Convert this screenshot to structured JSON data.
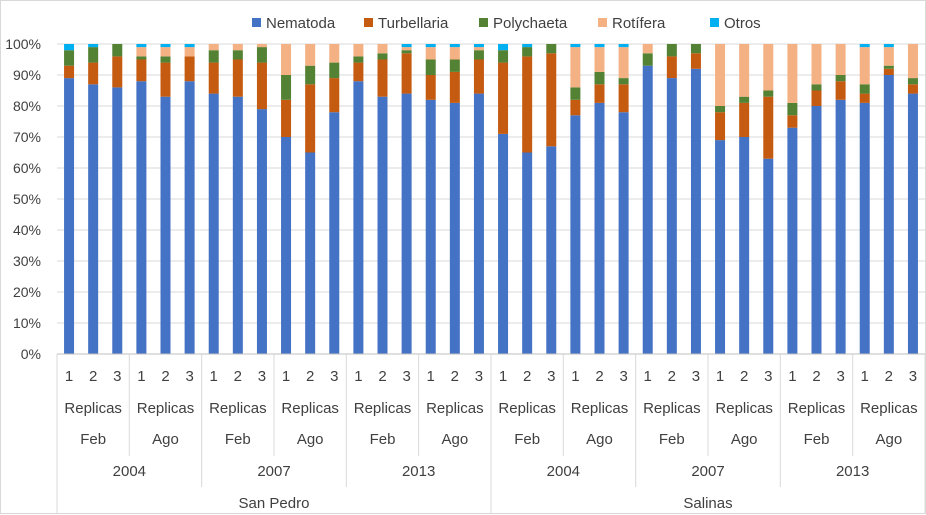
{
  "chart_data": {
    "type": "bar",
    "stacked": "percent",
    "title": "",
    "xlabel": "",
    "ylabel": "",
    "ylim": [
      0,
      100
    ],
    "yticks": [
      "0%",
      "10%",
      "20%",
      "30%",
      "40%",
      "50%",
      "60%",
      "70%",
      "80%",
      "90%",
      "100%"
    ],
    "grid": true,
    "legend_position": "top",
    "legend": [
      "Nematoda",
      "Turbellaria",
      "Polychaeta",
      "Rotífera",
      "Otros"
    ],
    "colors": {
      "Nematoda": "#4472c4",
      "Turbellaria": "#c55a11",
      "Polychaeta": "#548235",
      "Rotífera": "#f4b183",
      "Otros": "#00b0f0"
    },
    "category_levels": {
      "replicate_labels": [
        "1",
        "2",
        "3"
      ],
      "group_label": "Replicas",
      "months": [
        "Feb",
        "Ago"
      ],
      "years": [
        "2004",
        "2007",
        "2013"
      ],
      "sites": [
        "San Pedro",
        "Salinas"
      ]
    },
    "series": [
      {
        "name": "Nematoda",
        "values": [
          89,
          87,
          86,
          88,
          83,
          88,
          84,
          83,
          79,
          70,
          65,
          78,
          88,
          83,
          84,
          82,
          81,
          84,
          71,
          65,
          67,
          77,
          81,
          78,
          93,
          89,
          92,
          69,
          70,
          63,
          73,
          80,
          82,
          81,
          90,
          84
        ]
      },
      {
        "name": "Turbellaria",
        "values": [
          4,
          7,
          10,
          7,
          11,
          8,
          10,
          12,
          15,
          12,
          22,
          11,
          6,
          12,
          13,
          8,
          10,
          11,
          23,
          31,
          30,
          5,
          6,
          9,
          0,
          7,
          5,
          9,
          11,
          20,
          4,
          5,
          6,
          3,
          2,
          3
        ]
      },
      {
        "name": "Polychaeta",
        "values": [
          5,
          5,
          4,
          1,
          2,
          0,
          4,
          3,
          5,
          8,
          6,
          5,
          2,
          2,
          1,
          5,
          4,
          3,
          4,
          3,
          3,
          4,
          4,
          2,
          4,
          4,
          3,
          2,
          2,
          2,
          4,
          2,
          2,
          3,
          1,
          2
        ]
      },
      {
        "name": "Rotífera",
        "values": [
          0,
          0,
          0,
          3,
          3,
          3,
          2,
          2,
          1,
          10,
          7,
          6,
          4,
          3,
          1,
          4,
          4,
          1,
          0,
          0,
          0,
          13,
          8,
          10,
          3,
          0,
          0,
          20,
          17,
          15,
          19,
          13,
          10,
          12,
          6,
          11
        ]
      },
      {
        "name": "Otros",
        "values": [
          2,
          1,
          0,
          1,
          1,
          1,
          0,
          0,
          0,
          0,
          0,
          0,
          0,
          0,
          1,
          1,
          1,
          1,
          2,
          1,
          0,
          1,
          1,
          1,
          0,
          0,
          0,
          0,
          0,
          0,
          0,
          0,
          0,
          1,
          1,
          0
        ]
      }
    ]
  }
}
